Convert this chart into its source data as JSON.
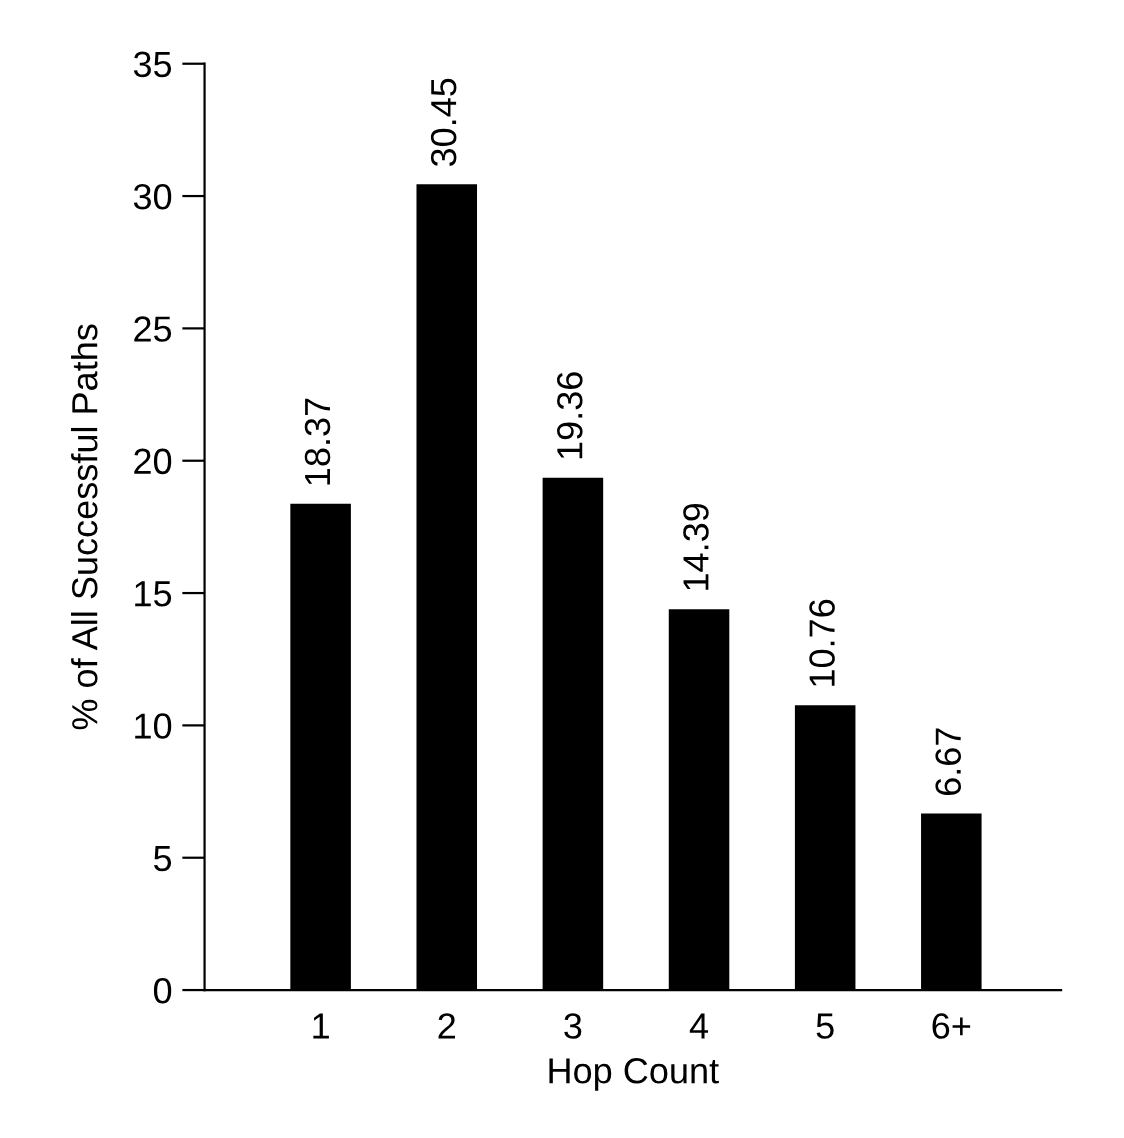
{
  "chart_data": {
    "type": "bar",
    "xlabel": "Hop Count",
    "ylabel": "% of All Successful Paths",
    "categories": [
      "1",
      "2",
      "3",
      "4",
      "5",
      "6+"
    ],
    "values": [
      18.37,
      30.45,
      19.36,
      14.39,
      10.76,
      6.67
    ],
    "color": "#000000",
    "ylim": [
      0,
      35
    ],
    "yticks": [
      0,
      5,
      10,
      15,
      20,
      25,
      30,
      35
    ],
    "grid": false,
    "data_labels": true
  }
}
